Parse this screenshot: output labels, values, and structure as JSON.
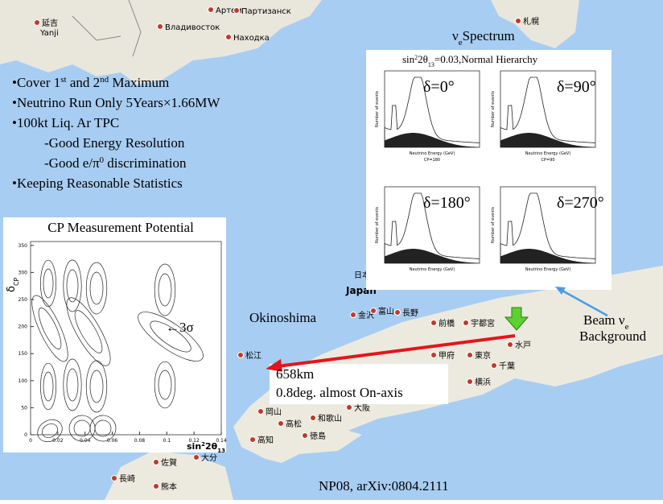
{
  "map_labels": [
    "Артем",
    "Партизанск",
    "Владивосток",
    "Находка",
    "延吉",
    "Yanji",
    "札幌",
    "日本",
    "Japan",
    "金沢",
    "富山",
    "長野",
    "前橋",
    "宇都宮",
    "水戸",
    "甲府",
    "東京",
    "千葉",
    "横浜",
    "松江",
    "大阪",
    "和歌山",
    "徳島",
    "高知",
    "高松",
    "岡山",
    "大分",
    "佐賀",
    "長崎",
    "熊本"
  ],
  "bullets": [
    [
      "•Cover 1",
      "st",
      "  and 2",
      "nd",
      " Maximum"
    ],
    [
      "•Neutrino Run Only  5Years×1.66MW"
    ],
    [
      "•100kt Liq. Ar TPC"
    ],
    [
      "-Good Energy Resolution"
    ],
    [
      "-Good e/π",
      "0",
      " discrimination"
    ],
    [
      "•Keeping Reasonable Statistics"
    ]
  ],
  "spectrum": {
    "title": [
      "ν",
      "e",
      "Spectrum"
    ],
    "subtitle": [
      "sin",
      "2",
      "2θ",
      "13",
      "=0.03,Normal Hierarchy"
    ],
    "panels": [
      {
        "label": "δ=0°",
        "caption": "CP=180"
      },
      {
        "label": "δ=90°",
        "caption": "CP=90"
      },
      {
        "label": "δ=180°"
      },
      {
        "label": "δ=270°"
      }
    ],
    "x_label": "Neutrino Energy (GeV)",
    "y_label": "Number of events"
  },
  "cp_plot": {
    "title": "CP Measurement  Potential",
    "y_label": [
      "δ",
      "CP"
    ],
    "x_label": [
      "sin",
      "2",
      "2θ",
      "13"
    ],
    "yticks": [
      0,
      50,
      100,
      150,
      200,
      250,
      300,
      350
    ],
    "xticks": [
      0,
      0.02,
      0.04,
      0.06,
      0.08,
      0.1,
      0.12,
      0.14
    ],
    "annotation": "←3σ"
  },
  "okinoshima": "Okinoshima",
  "distance": "658km",
  "angle": "0.8deg. almost On-axis",
  "beam": [
    "Beam ν",
    "e"
  ],
  "background": "Background",
  "reference": "NP08, arXiv:0804.2111"
}
